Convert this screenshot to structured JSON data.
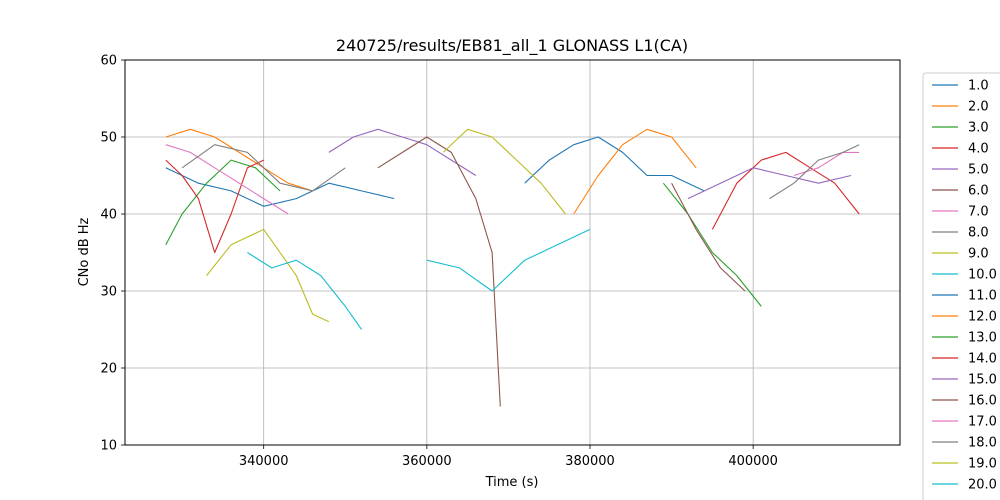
{
  "chart_data": {
    "type": "line",
    "title": "240725/results/EB81_all_1 GLONASS L1(CA)",
    "xlabel": "Time (s)",
    "ylabel": "CNo dB Hz",
    "xlim": [
      323000,
      418000
    ],
    "ylim": [
      10,
      60
    ],
    "xticks": [
      340000,
      360000,
      380000,
      400000
    ],
    "xtick_labels": [
      "340000",
      "360000",
      "380000",
      "400000"
    ],
    "yticks": [
      10,
      20,
      30,
      40,
      50,
      60
    ],
    "ytick_labels": [
      "10",
      "20",
      "30",
      "40",
      "50",
      "60"
    ],
    "grid": true,
    "legend_position": "right, outside plot (clipped at bottom)",
    "series": [
      {
        "name": "1.0",
        "color": "#1f77b4",
        "x": [
          328000,
          332000,
          336000,
          340000,
          344000,
          348000,
          352000,
          356000
        ],
        "values": [
          46,
          44,
          43,
          41,
          42,
          44,
          43,
          42
        ]
      },
      {
        "name": "2.0",
        "color": "#ff7f0e",
        "x": [
          328000,
          331000,
          334000,
          337000,
          340000,
          343000,
          346000
        ],
        "values": [
          50,
          51,
          50,
          48,
          46,
          44,
          43
        ]
      },
      {
        "name": "3.0",
        "color": "#2ca02c",
        "x": [
          328000,
          330000,
          333000,
          336000,
          339000,
          342000
        ],
        "values": [
          36,
          40,
          44,
          47,
          46,
          43
        ]
      },
      {
        "name": "4.0",
        "color": "#d62728",
        "x": [
          328000,
          330000,
          332000,
          334000,
          336000,
          338000,
          340000
        ],
        "values": [
          47,
          45,
          42,
          35,
          40,
          46,
          47
        ]
      },
      {
        "name": "5.0",
        "color": "#9467bd",
        "x": [
          348000,
          351000,
          354000,
          357000,
          360000,
          363000,
          366000
        ],
        "values": [
          48,
          50,
          51,
          50,
          49,
          47,
          45
        ]
      },
      {
        "name": "6.0",
        "color": "#8c564b",
        "x": [
          354000,
          357000,
          360000,
          363000,
          366000,
          368000,
          369000
        ],
        "values": [
          46,
          48,
          50,
          48,
          42,
          35,
          15
        ]
      },
      {
        "name": "7.0",
        "color": "#e377c2",
        "x": [
          328000,
          331000,
          334000,
          337000,
          340000,
          343000
        ],
        "values": [
          49,
          48,
          46,
          44,
          42,
          40
        ]
      },
      {
        "name": "8.0",
        "color": "#7f7f7f",
        "x": [
          330000,
          334000,
          338000,
          342000,
          346000,
          350000
        ],
        "values": [
          46,
          49,
          48,
          44,
          43,
          46
        ]
      },
      {
        "name": "9.0",
        "color": "#bcbd22",
        "x": [
          333000,
          336000,
          340000,
          344000,
          346000,
          348000
        ],
        "values": [
          32,
          36,
          38,
          32,
          27,
          26
        ]
      },
      {
        "name": "10.0",
        "color": "#17becf",
        "x": [
          338000,
          341000,
          344000,
          347000,
          350000,
          352000
        ],
        "values": [
          35,
          33,
          34,
          32,
          28,
          25
        ]
      },
      {
        "name": "11.0",
        "color": "#1f77b4",
        "x": [
          372000,
          375000,
          378000,
          381000,
          384000,
          387000,
          390000,
          394000
        ],
        "values": [
          44,
          47,
          49,
          50,
          48,
          45,
          45,
          43
        ]
      },
      {
        "name": "12.0",
        "color": "#ff7f0e",
        "x": [
          378000,
          381000,
          384000,
          387000,
          390000,
          393000
        ],
        "values": [
          40,
          45,
          49,
          51,
          50,
          46
        ]
      },
      {
        "name": "13.0",
        "color": "#2ca02c",
        "x": [
          389000,
          392000,
          395000,
          398000,
          401000
        ],
        "values": [
          44,
          40,
          35,
          32,
          28
        ]
      },
      {
        "name": "14.0",
        "color": "#d62728",
        "x": [
          395000,
          398000,
          401000,
          404000,
          407000,
          410000,
          413000
        ],
        "values": [
          38,
          44,
          47,
          48,
          46,
          44,
          40
        ]
      },
      {
        "name": "15.0",
        "color": "#9467bd",
        "x": [
          392000,
          396000,
          400000,
          404000,
          408000,
          412000
        ],
        "values": [
          42,
          44,
          46,
          45,
          44,
          45
        ]
      },
      {
        "name": "16.0",
        "color": "#8c564b",
        "x": [
          390000,
          393000,
          396000,
          399000
        ],
        "values": [
          44,
          38,
          33,
          30
        ]
      },
      {
        "name": "17.0",
        "color": "#e377c2",
        "x": [
          405000,
          408000,
          411000,
          413000
        ],
        "values": [
          45,
          46,
          48,
          48
        ]
      },
      {
        "name": "18.0",
        "color": "#7f7f7f",
        "x": [
          402000,
          405000,
          408000,
          411000,
          413000
        ],
        "values": [
          42,
          44,
          47,
          48,
          49
        ]
      },
      {
        "name": "19.0",
        "color": "#bcbd22",
        "x": [
          362000,
          365000,
          368000,
          371000,
          374000,
          377000
        ],
        "values": [
          48,
          51,
          50,
          47,
          44,
          40
        ]
      },
      {
        "name": "20.0",
        "color": "#17becf",
        "x": [
          360000,
          364000,
          368000,
          372000,
          376000,
          380000
        ],
        "values": [
          34,
          33,
          30,
          34,
          36,
          38
        ]
      }
    ]
  }
}
